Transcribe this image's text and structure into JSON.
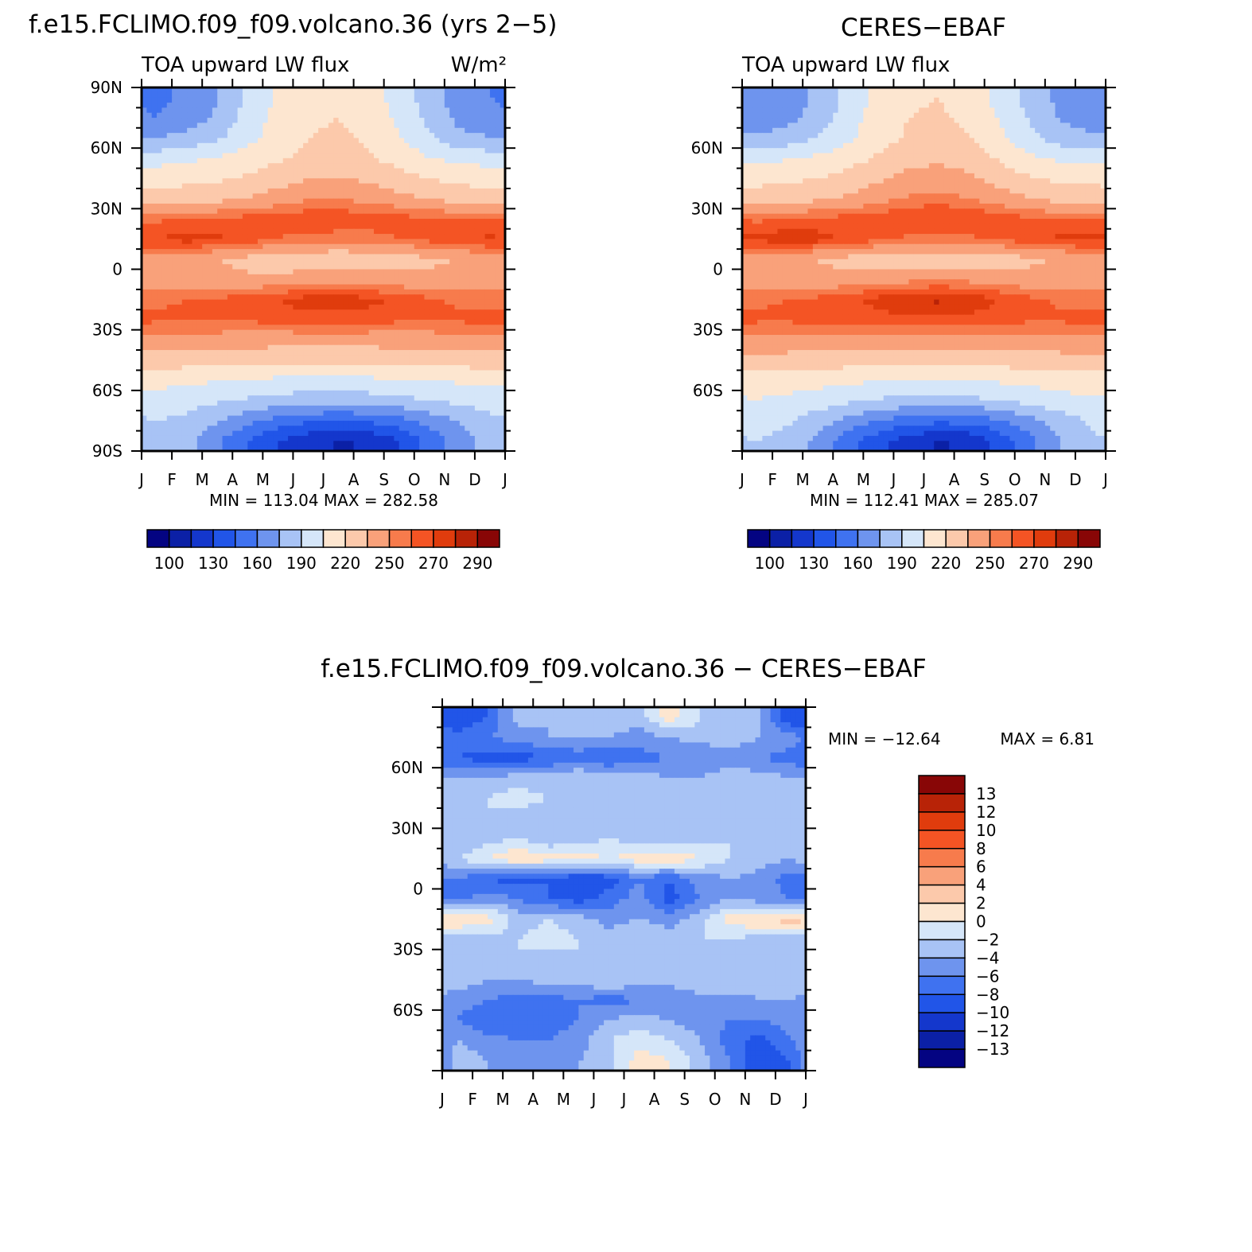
{
  "chart_data": [
    {
      "type": "heatmap",
      "title": "f.e15.FCLIMO.f09_f09.volcano.36 (yrs 2−5)",
      "subtitle_left": "TOA upward LW flux",
      "subtitle_right": "W/m²",
      "stats": "MIN = 113.04 MAX = 282.58",
      "x_ticks": [
        "J",
        "F",
        "M",
        "A",
        "M",
        "J",
        "J",
        "A",
        "S",
        "O",
        "N",
        "D",
        "J"
      ],
      "y_ticks": [
        "90N",
        "60N",
        "30N",
        "0",
        "30S",
        "60S",
        "90S"
      ],
      "ylim": [
        -90,
        90
      ],
      "x": [
        "Jan",
        "Feb",
        "Mar",
        "Apr",
        "May",
        "Jun",
        "Jul",
        "Aug",
        "Sep",
        "Oct",
        "Nov",
        "Dec"
      ],
      "y": [
        -85,
        -75,
        -65,
        -55,
        -45,
        -35,
        -25,
        -15,
        -5,
        5,
        15,
        25,
        35,
        45,
        55,
        65,
        75,
        85
      ],
      "values": [
        [
          185,
          180,
          162,
          145,
          130,
          118,
          114,
          116,
          130,
          150,
          168,
          180
        ],
        [
          190,
          186,
          176,
          165,
          155,
          148,
          146,
          148,
          155,
          165,
          176,
          186
        ],
        [
          198,
          196,
          192,
          188,
          184,
          182,
          181,
          183,
          186,
          190,
          194,
          197
        ],
        [
          210,
          208,
          206,
          204,
          202,
          201,
          201,
          202,
          203,
          205,
          207,
          209
        ],
        [
          228,
          227,
          226,
          225,
          224,
          224,
          224,
          224,
          225,
          226,
          227,
          228
        ],
        [
          245,
          244,
          243,
          242,
          241,
          241,
          241,
          241,
          242,
          243,
          244,
          245
        ],
        [
          262,
          262,
          262,
          262,
          264,
          266,
          266,
          265,
          262,
          261,
          262,
          263
        ],
        [
          258,
          260,
          262,
          266,
          270,
          275,
          276,
          273,
          268,
          262,
          258,
          257
        ],
        [
          242,
          240,
          238,
          238,
          240,
          242,
          244,
          243,
          240,
          238,
          240,
          242
        ],
        [
          246,
          240,
          236,
          230,
          226,
          224,
          222,
          224,
          228,
          232,
          236,
          242
        ],
        [
          270,
          275,
          272,
          266,
          260,
          256,
          255,
          256,
          260,
          264,
          270,
          272
        ],
        [
          258,
          260,
          262,
          264,
          266,
          268,
          268,
          266,
          264,
          262,
          260,
          259
        ],
        [
          225,
          227,
          230,
          236,
          242,
          248,
          249,
          246,
          240,
          234,
          228,
          226
        ],
        [
          215,
          216,
          218,
          222,
          228,
          234,
          236,
          232,
          225,
          220,
          216,
          215
        ],
        [
          198,
          202,
          206,
          212,
          218,
          224,
          226,
          222,
          214,
          206,
          200,
          198
        ],
        [
          175,
          180,
          188,
          200,
          212,
          220,
          222,
          218,
          206,
          192,
          180,
          176
        ],
        [
          160,
          165,
          178,
          196,
          210,
          218,
          220,
          215,
          202,
          186,
          170,
          162
        ],
        [
          158,
          162,
          174,
          192,
          208,
          216,
          218,
          212,
          198,
          182,
          166,
          160
        ]
      ],
      "colorbar_labels": [
        "100",
        "130",
        "160",
        "190",
        "220",
        "250",
        "270",
        "290"
      ],
      "levels": [
        100,
        115,
        130,
        145,
        160,
        175,
        190,
        205,
        220,
        235,
        250,
        260,
        270,
        280,
        290
      ],
      "colors": [
        "#040482",
        "#0b20a6",
        "#1437cc",
        "#2155e8",
        "#3f72f0",
        "#6e94ee",
        "#a8c3f5",
        "#d5e6f9",
        "#fde6d0",
        "#fcc9ab",
        "#f9a17a",
        "#f77b4c",
        "#f45424",
        "#e03c0d",
        "#b82307",
        "#880606"
      ]
    },
    {
      "type": "heatmap",
      "title": "CERES−EBAF",
      "subtitle_left": "TOA upward LW flux",
      "stats": "MIN = 112.41 MAX = 285.07",
      "x_ticks": [
        "J",
        "F",
        "M",
        "A",
        "M",
        "J",
        "J",
        "A",
        "S",
        "O",
        "N",
        "D",
        "J"
      ],
      "y_ticks": [
        "",
        "60N",
        "30N",
        "0",
        "30S",
        "60S",
        ""
      ],
      "ylim": [
        -90,
        90
      ],
      "x": [
        "Jan",
        "Feb",
        "Mar",
        "Apr",
        "May",
        "Jun",
        "Jul",
        "Aug",
        "Sep",
        "Oct",
        "Nov",
        "Dec"
      ],
      "y": [
        -85,
        -75,
        -65,
        -55,
        -45,
        -35,
        -25,
        -15,
        -5,
        5,
        15,
        25,
        35,
        45,
        55,
        65,
        75,
        85
      ],
      "values": [
        [
          190,
          185,
          170,
          150,
          135,
          122,
          113,
          118,
          135,
          155,
          175,
          188
        ],
        [
          196,
          192,
          182,
          170,
          160,
          152,
          149,
          150,
          158,
          170,
          182,
          192
        ],
        [
          204,
          202,
          198,
          193,
          188,
          186,
          185,
          186,
          190,
          195,
          200,
          203
        ],
        [
          214,
          212,
          210,
          208,
          206,
          205,
          205,
          206,
          207,
          209,
          211,
          213
        ],
        [
          230,
          229,
          228,
          227,
          226,
          226,
          226,
          226,
          227,
          228,
          229,
          230
        ],
        [
          246,
          245,
          244,
          243,
          242,
          242,
          242,
          242,
          243,
          244,
          245,
          246
        ],
        [
          262,
          262,
          263,
          264,
          266,
          268,
          268,
          267,
          264,
          262,
          262,
          263
        ],
        [
          258,
          260,
          263,
          268,
          274,
          280,
          282,
          278,
          270,
          263,
          258,
          257
        ],
        [
          244,
          242,
          240,
          240,
          242,
          246,
          248,
          246,
          242,
          240,
          242,
          244
        ],
        [
          244,
          238,
          234,
          230,
          228,
          226,
          225,
          226,
          228,
          232,
          236,
          240
        ],
        [
          272,
          278,
          275,
          268,
          262,
          258,
          257,
          258,
          262,
          266,
          272,
          274
        ],
        [
          258,
          260,
          262,
          264,
          266,
          270,
          272,
          270,
          266,
          262,
          260,
          259
        ],
        [
          226,
          228,
          232,
          238,
          245,
          252,
          255,
          250,
          242,
          235,
          229,
          227
        ],
        [
          216,
          217,
          220,
          225,
          232,
          240,
          242,
          238,
          228,
          222,
          217,
          216
        ],
        [
          200,
          204,
          208,
          214,
          222,
          230,
          232,
          228,
          218,
          208,
          202,
          200
        ],
        [
          178,
          182,
          190,
          202,
          214,
          222,
          225,
          220,
          208,
          194,
          182,
          178
        ],
        [
          165,
          170,
          182,
          198,
          212,
          220,
          222,
          217,
          204,
          188,
          174,
          168
        ],
        [
          162,
          166,
          178,
          194,
          210,
          218,
          220,
          214,
          200,
          184,
          170,
          164
        ]
      ],
      "colorbar_labels": [
        "100",
        "130",
        "160",
        "190",
        "220",
        "250",
        "270",
        "290"
      ],
      "levels": [
        100,
        115,
        130,
        145,
        160,
        175,
        190,
        205,
        220,
        235,
        250,
        260,
        270,
        280,
        290
      ],
      "colors": [
        "#040482",
        "#0b20a6",
        "#1437cc",
        "#2155e8",
        "#3f72f0",
        "#6e94ee",
        "#a8c3f5",
        "#d5e6f9",
        "#fde6d0",
        "#fcc9ab",
        "#f9a17a",
        "#f77b4c",
        "#f45424",
        "#e03c0d",
        "#b82307",
        "#880606"
      ]
    },
    {
      "type": "heatmap",
      "title": "f.e15.FCLIMO.f09_f09.volcano.36 − CERES−EBAF",
      "stats_min": "MIN = −12.64",
      "stats_max": "MAX = 6.81",
      "x_ticks": [
        "J",
        "F",
        "M",
        "A",
        "M",
        "J",
        "J",
        "A",
        "S",
        "O",
        "N",
        "D",
        "J"
      ],
      "y_ticks": [
        "",
        "60N",
        "30N",
        "0",
        "30S",
        "60S",
        ""
      ],
      "ylim": [
        -90,
        90
      ],
      "x": [
        "Jan",
        "Feb",
        "Mar",
        "Apr",
        "May",
        "Jun",
        "Jul",
        "Aug",
        "Sep",
        "Oct",
        "Nov",
        "Dec"
      ],
      "y": [
        -85,
        -75,
        -65,
        -55,
        -45,
        -35,
        -25,
        -15,
        -5,
        5,
        15,
        25,
        35,
        45,
        55,
        65,
        75,
        85
      ],
      "values": [
        [
          -3,
          -4,
          -5,
          -5,
          -4,
          -3,
          1,
          0,
          -3,
          -6,
          -10,
          -8
        ],
        [
          -4,
          -5,
          -6,
          -6,
          -5,
          -2,
          -1,
          -2,
          -4,
          -7,
          -9,
          -6
        ],
        [
          -6,
          -8,
          -8,
          -7,
          -6,
          -4,
          -3,
          -4,
          -5,
          -6,
          -6,
          -5
        ],
        [
          -5,
          -6,
          -7,
          -7,
          -6,
          -7,
          -6,
          -6,
          -5,
          -5,
          -4,
          -4
        ],
        [
          -3,
          -4,
          -4,
          -3,
          -3,
          -2,
          -3,
          -3,
          -2,
          -2,
          -3,
          -3
        ],
        [
          -4,
          -3,
          -2,
          -3,
          -2,
          -2,
          -3,
          -2,
          -2,
          -3,
          -2,
          -3
        ],
        [
          -3,
          -3,
          -2,
          -1,
          -2,
          -3,
          -2,
          -3,
          -2,
          -2,
          -3,
          -3
        ],
        [
          2,
          1,
          -3,
          -2,
          -3,
          -5,
          -4,
          -5,
          -3,
          1,
          2,
          3
        ],
        [
          -7,
          -5,
          -6,
          -8,
          -9,
          -7,
          -5,
          -9,
          -6,
          -4,
          -5,
          -6
        ],
        [
          -6,
          -8,
          -9,
          -8,
          -10,
          -9,
          -6,
          -8,
          -5,
          -4,
          -5,
          -7
        ],
        [
          -2,
          0,
          2,
          1,
          1,
          0,
          1,
          2,
          0,
          -2,
          -3,
          -4
        ],
        [
          -4,
          -3,
          -2,
          -4,
          -3,
          -2,
          -3,
          -4,
          -3,
          -2,
          -3,
          -4
        ],
        [
          -3,
          -2,
          -3,
          -3,
          -3,
          -3,
          -2,
          -3,
          -4,
          -3,
          -2,
          -3
        ],
        [
          -3,
          -2,
          -1,
          -2,
          -2,
          -2,
          -3,
          -2,
          -2,
          -2,
          -3,
          -4
        ],
        [
          -4,
          -4,
          -3,
          -3,
          -2,
          -3,
          -3,
          -4,
          -4,
          -3,
          -3,
          -4
        ],
        [
          -8,
          -9,
          -9,
          -8,
          -7,
          -8,
          -7,
          -6,
          -6,
          -5,
          -6,
          -7
        ],
        [
          -7,
          -6,
          -5,
          -4,
          -4,
          -4,
          -5,
          -4,
          -3,
          -3,
          -4,
          -5
        ],
        [
          -10,
          -8,
          -3,
          -4,
          -4,
          -3,
          -3,
          1,
          -2,
          -3,
          -4,
          -10
        ]
      ],
      "colorbar_labels": [
        "13",
        "12",
        "10",
        "8",
        "6",
        "4",
        "2",
        "0",
        "−2",
        "−4",
        "−6",
        "−8",
        "−10",
        "−12",
        "−13"
      ],
      "levels": [
        -13,
        -12,
        -10,
        -8,
        -6,
        -4,
        -2,
        0,
        2,
        4,
        6,
        8,
        10,
        12,
        13
      ],
      "colors": [
        "#040482",
        "#0b20a6",
        "#1437cc",
        "#2155e8",
        "#3f72f0",
        "#6e94ee",
        "#a8c3f5",
        "#d5e6f9",
        "#fde6d0",
        "#fcc9ab",
        "#f9a17a",
        "#f77b4c",
        "#f45424",
        "#e03c0d",
        "#b82307",
        "#880606"
      ]
    }
  ]
}
